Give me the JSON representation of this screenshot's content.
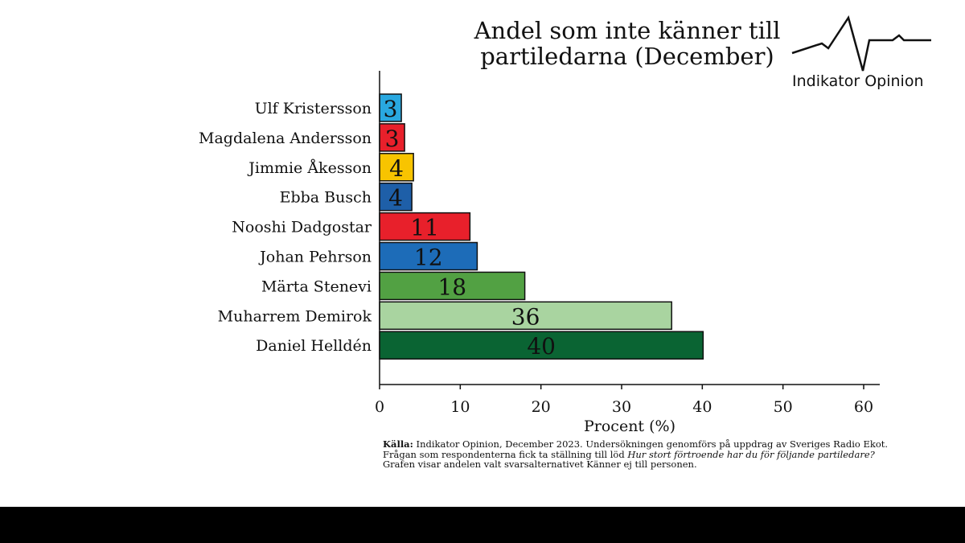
{
  "title_line1": "Andel som inte känner till",
  "title_line2": "partiledarna (December)",
  "logo": {
    "text": "Indikator Opinion",
    "icon": "pulse-line-icon"
  },
  "source": {
    "label": "Källa:",
    "line1": "Indikator Opinion, December 2023. Undersökningen genomförs på uppdrag av Sveriges Radio Ekot.",
    "line2_prefix": "Frågan som respondenterna fick ta ställning till löd",
    "line2_question": "Hur stort förtroende har du för följande partiledare?",
    "line3": "Grafen visar andelen valt svarsalternativet Känner ej till personen."
  },
  "chart_data": {
    "type": "bar",
    "orientation": "horizontal",
    "title": "Andel som inte känner till partiledarna (December)",
    "xlabel": "Procent (%)",
    "ylabel": "",
    "xlim": [
      0,
      60
    ],
    "xticks": [
      0,
      10,
      20,
      30,
      40,
      50,
      60
    ],
    "grid": false,
    "categories": [
      "Ulf Kristersson",
      "Magdalena Andersson",
      "Jimmie Åkesson",
      "Ebba Busch",
      "Nooshi Dadgostar",
      "Johan Pehrson",
      "Märta Stenevi",
      "Muharrem Demirok",
      "Daniel Helldén"
    ],
    "values": [
      2.7,
      3.1,
      4.2,
      4.0,
      11.2,
      12.1,
      18.0,
      36.2,
      40.1
    ],
    "labels": [
      "3",
      "3",
      "4",
      "4",
      "11",
      "12",
      "18",
      "36",
      "40"
    ],
    "colors": [
      "#29a8e0",
      "#e8202b",
      "#f8c400",
      "#1e5fa8",
      "#e8202b",
      "#1d6cb8",
      "#52a143",
      "#a9d4a0",
      "#0a6433"
    ]
  }
}
